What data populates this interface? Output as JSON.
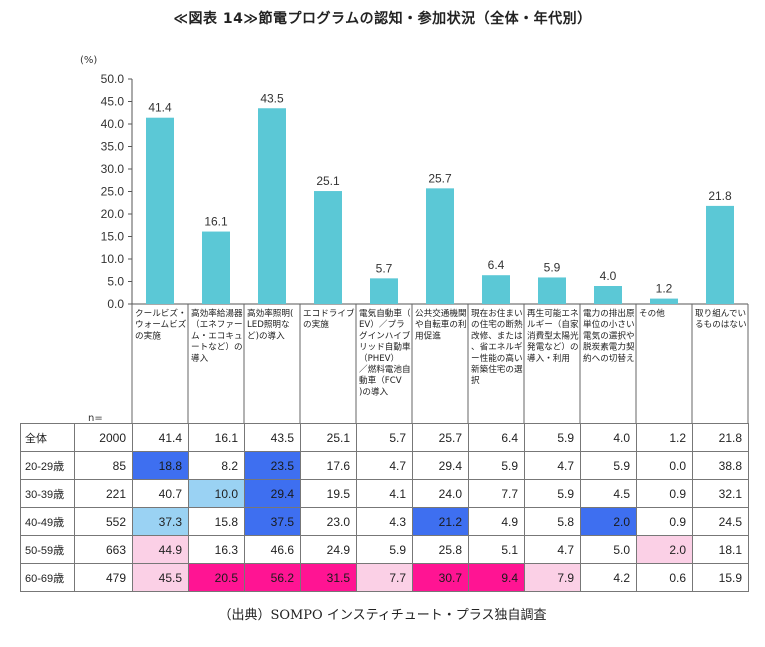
{
  "title": "≪図表 14≫節電プログラムの認知・参加状況（全体・年代別）",
  "source": "（出典）SOMPO インスティチュート・プラス独自調査",
  "n_label": "n=",
  "colors": {
    "bar": "#5bc8d6",
    "blue_dark": "#3e6ff0",
    "blue_light": "#9ad2f3",
    "pink_light": "#fbd0e6",
    "magenta": "#ff1493"
  },
  "chart_data": {
    "type": "bar",
    "ylabel": "(%)",
    "ylim": [
      0,
      50
    ],
    "yticks": [
      "0.0",
      "5.0",
      "10.0",
      "15.0",
      "20.0",
      "25.0",
      "30.0",
      "35.0",
      "40.0",
      "45.0",
      "50.0"
    ],
    "grid": false,
    "categories": [
      "クールビズ・ウォームビズの実施",
      "高効率給湯器（エネファーム・エコキュートなど）の導入",
      "高効率照明(LED照明など)の導入",
      "エコドライブの実施",
      "電気自動車（EV）／プラグインハイブリッド自動車（PHEV）／燃料電池自動車（FCV)の導入",
      "公共交通機関や自転車の利用促進",
      "現在お住まいの住宅の断熱改修、または、省エネルギー性能の高い新築住宅の選択",
      "再生可能エネルギー（自家消費型太陽光発電など）の導入・利用",
      "電力の排出原単位の小さい電気の選択や脱炭素電力契約への切替え",
      "その他",
      "取り組んでいるものはない"
    ],
    "values": [
      41.4,
      16.1,
      43.5,
      25.1,
      5.7,
      25.7,
      6.4,
      5.9,
      4.0,
      1.2,
      21.8
    ],
    "value_labels": [
      "41.4",
      "16.1",
      "43.5",
      "25.1",
      "5.7",
      "25.7",
      "6.4",
      "5.9",
      "4.0",
      "1.2",
      "21.8"
    ]
  },
  "table": {
    "rows": [
      {
        "label": "全体",
        "n": "2000",
        "values": [
          "41.4",
          "16.1",
          "43.5",
          "25.1",
          "5.7",
          "25.7",
          "6.4",
          "5.9",
          "4.0",
          "1.2",
          "21.8"
        ],
        "highlights": [
          "",
          "",
          "",
          "",
          "",
          "",
          "",
          "",
          "",
          "",
          ""
        ]
      },
      {
        "label": "20-29歳",
        "n": "85",
        "values": [
          "18.8",
          "8.2",
          "23.5",
          "17.6",
          "4.7",
          "29.4",
          "5.9",
          "4.7",
          "5.9",
          "0.0",
          "38.8"
        ],
        "highlights": [
          "blue_dark",
          "",
          "blue_dark",
          "",
          "",
          "",
          "",
          "",
          "",
          "",
          ""
        ]
      },
      {
        "label": "30-39歳",
        "n": "221",
        "values": [
          "40.7",
          "10.0",
          "29.4",
          "19.5",
          "4.1",
          "24.0",
          "7.7",
          "5.9",
          "4.5",
          "0.9",
          "32.1"
        ],
        "highlights": [
          "",
          "blue_light",
          "blue_dark",
          "",
          "",
          "",
          "",
          "",
          "",
          "",
          ""
        ]
      },
      {
        "label": "40-49歳",
        "n": "552",
        "values": [
          "37.3",
          "15.8",
          "37.5",
          "23.0",
          "4.3",
          "21.2",
          "4.9",
          "5.8",
          "2.0",
          "0.9",
          "24.5"
        ],
        "highlights": [
          "blue_light",
          "",
          "blue_dark",
          "",
          "",
          "blue_dark",
          "",
          "",
          "blue_dark",
          "",
          ""
        ]
      },
      {
        "label": "50-59歳",
        "n": "663",
        "values": [
          "44.9",
          "16.3",
          "46.6",
          "24.9",
          "5.9",
          "25.8",
          "5.1",
          "4.7",
          "5.0",
          "2.0",
          "18.1"
        ],
        "highlights": [
          "pink_light",
          "",
          "",
          "",
          "",
          "",
          "",
          "",
          "",
          "pink_light",
          ""
        ]
      },
      {
        "label": "60-69歳",
        "n": "479",
        "values": [
          "45.5",
          "20.5",
          "56.2",
          "31.5",
          "7.7",
          "30.7",
          "9.4",
          "7.9",
          "4.2",
          "0.6",
          "15.9"
        ],
        "highlights": [
          "pink_light",
          "magenta",
          "magenta",
          "magenta",
          "pink_light",
          "magenta",
          "magenta",
          "pink_light",
          "",
          "",
          ""
        ]
      }
    ]
  }
}
